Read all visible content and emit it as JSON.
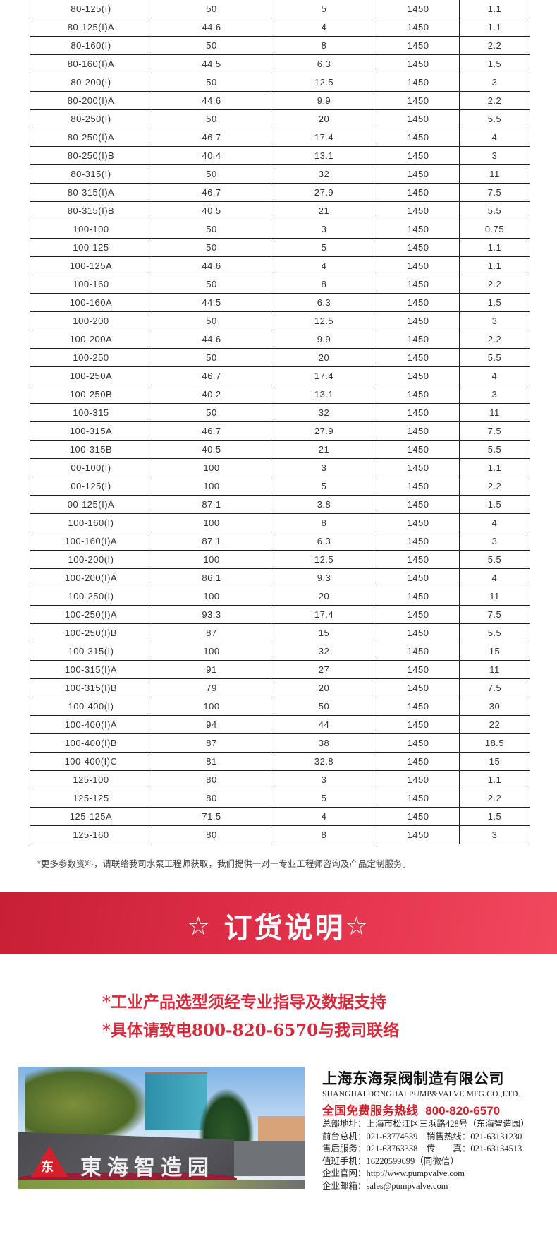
{
  "table": {
    "rows": [
      [
        "80-125(I)",
        "50",
        "5",
        "1450",
        "1.1"
      ],
      [
        "80-125(I)A",
        "44.6",
        "4",
        "1450",
        "1.1"
      ],
      [
        "80-160(I)",
        "50",
        "8",
        "1450",
        "2.2"
      ],
      [
        "80-160(I)A",
        "44.5",
        "6.3",
        "1450",
        "1.5"
      ],
      [
        "80-200(I)",
        "50",
        "12.5",
        "1450",
        "3"
      ],
      [
        "80-200(I)A",
        "44.6",
        "9.9",
        "1450",
        "2.2"
      ],
      [
        "80-250(I)",
        "50",
        "20",
        "1450",
        "5.5"
      ],
      [
        "80-250(I)A",
        "46.7",
        "17.4",
        "1450",
        "4"
      ],
      [
        "80-250(I)B",
        "40.4",
        "13.1",
        "1450",
        "3"
      ],
      [
        "80-315(I)",
        "50",
        "32",
        "1450",
        "11"
      ],
      [
        "80-315(I)A",
        "46.7",
        "27.9",
        "1450",
        "7.5"
      ],
      [
        "80-315(I)B",
        "40.5",
        "21",
        "1450",
        "5.5"
      ],
      [
        "100-100",
        "50",
        "3",
        "1450",
        "0.75"
      ],
      [
        "100-125",
        "50",
        "5",
        "1450",
        "1.1"
      ],
      [
        "100-125A",
        "44.6",
        "4",
        "1450",
        "1.1"
      ],
      [
        "100-160",
        "50",
        "8",
        "1450",
        "2.2"
      ],
      [
        "100-160A",
        "44.5",
        "6.3",
        "1450",
        "1.5"
      ],
      [
        "100-200",
        "50",
        "12.5",
        "1450",
        "3"
      ],
      [
        "100-200A",
        "44.6",
        "9.9",
        "1450",
        "2.2"
      ],
      [
        "100-250",
        "50",
        "20",
        "1450",
        "5.5"
      ],
      [
        "100-250A",
        "46.7",
        "17.4",
        "1450",
        "4"
      ],
      [
        "100-250B",
        "40.2",
        "13.1",
        "1450",
        "3"
      ],
      [
        "100-315",
        "50",
        "32",
        "1450",
        "11"
      ],
      [
        "100-315A",
        "46.7",
        "27.9",
        "1450",
        "7.5"
      ],
      [
        "100-315B",
        "40.5",
        "21",
        "1450",
        "5.5"
      ],
      [
        "00-100(I)",
        "100",
        "3",
        "1450",
        "1.1"
      ],
      [
        "00-125(I)",
        "100",
        "5",
        "1450",
        "2.2"
      ],
      [
        "00-125(I)A",
        "87.1",
        "3.8",
        "1450",
        "1.5"
      ],
      [
        "100-160(I)",
        "100",
        "8",
        "1450",
        "4"
      ],
      [
        "100-160(I)A",
        "87.1",
        "6.3",
        "1450",
        "3"
      ],
      [
        "100-200(I)",
        "100",
        "12.5",
        "1450",
        "5.5"
      ],
      [
        "100-200(I)A",
        "86.1",
        "9.3",
        "1450",
        "4"
      ],
      [
        "100-250(I)",
        "100",
        "20",
        "1450",
        "11"
      ],
      [
        "100-250(I)A",
        "93.3",
        "17.4",
        "1450",
        "7.5"
      ],
      [
        "100-250(I)B",
        "87",
        "15",
        "1450",
        "5.5"
      ],
      [
        "100-315(I)",
        "100",
        "32",
        "1450",
        "15"
      ],
      [
        "100-315(I)A",
        "91",
        "27",
        "1450",
        "11"
      ],
      [
        "100-315(I)B",
        "79",
        "20",
        "1450",
        "7.5"
      ],
      [
        "100-400(I)",
        "100",
        "50",
        "1450",
        "30"
      ],
      [
        "100-400(I)A",
        "94",
        "44",
        "1450",
        "22"
      ],
      [
        "100-400(I)B",
        "87",
        "38",
        "1450",
        "18.5"
      ],
      [
        "100-400(I)C",
        "81",
        "32.8",
        "1450",
        "15"
      ],
      [
        "125-100",
        "80",
        "3",
        "1450",
        "1.1"
      ],
      [
        "125-125",
        "80",
        "5",
        "1450",
        "2.2"
      ],
      [
        "125-125A",
        "71.5",
        "4",
        "1450",
        "1.5"
      ],
      [
        "125-160",
        "80",
        "8",
        "1450",
        "3"
      ]
    ]
  },
  "note": "*更多参数资料，请联络我司水泵工程师获取，我们提供一对一专业工程师咨询及产品定制服务。",
  "banner": {
    "star_left": "☆",
    "title": "订货说明",
    "star_right": "☆",
    "color": "#e0304a"
  },
  "notices": [
    "*工业产品选型须经专业指导及数据支持",
    "*具体请致电800-820-6570与我司联络"
  ],
  "photo": {
    "sign_text": "東海智造园",
    "logo_text": "东"
  },
  "contact": {
    "company_cn": "上海东海泵阀制造有限公司",
    "company_en": "SHANGHAI DONGHAI PUMP&VALVE MFG.CO.,LTD.",
    "hotline_label": "全国免费服务热线",
    "hotline": "800-820-6570",
    "lines": [
      "总部地址：上海市松江区三浜路428号（东海智造园）",
      "前台总机：021-63774539　销售热线：021-63131230",
      "售后服务：021-63763338　传　　真：021-63134513",
      "值班手机：16220599699（同微信）",
      "企业官网：http://www.pumpvalve.com",
      "企业邮箱：sales@pumpvalve.com"
    ]
  }
}
